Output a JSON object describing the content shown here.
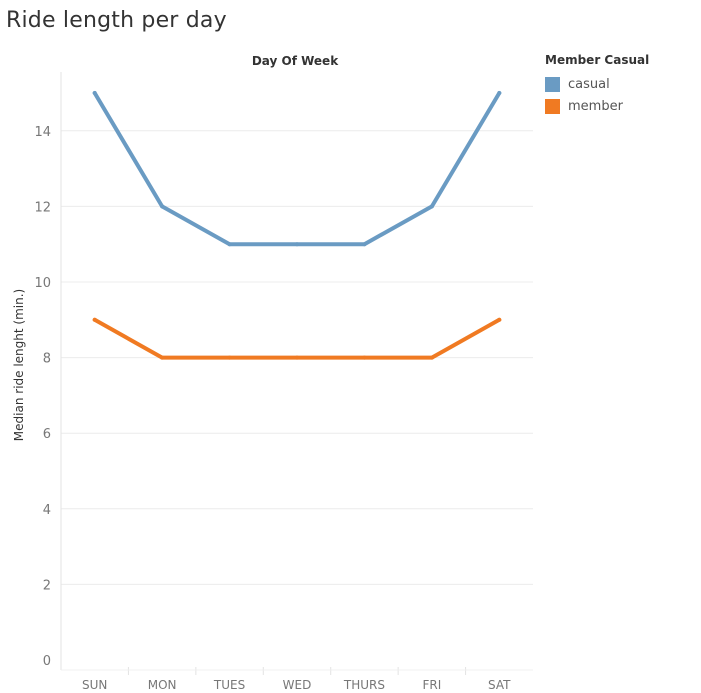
{
  "page": {
    "title": "Ride length per day"
  },
  "chart_data": {
    "type": "line",
    "title": "Ride length per day",
    "column_header": "Day Of Week",
    "xlabel": "",
    "ylabel": "Median ride lenght (min.)",
    "categories": [
      "SUN",
      "MON",
      "TUES",
      "WED",
      "THURS",
      "FRI",
      "SAT"
    ],
    "ylim": [
      0,
      16
    ],
    "yticks": [
      0,
      2,
      4,
      6,
      8,
      10,
      12,
      14
    ],
    "grid": true,
    "legend": {
      "title": "Member Casual",
      "position": "right"
    },
    "series": [
      {
        "name": "casual",
        "color": "#6a9bc3",
        "values": [
          15,
          12,
          11,
          11,
          11,
          12,
          15
        ]
      },
      {
        "name": "member",
        "color": "#f07a22",
        "values": [
          9,
          8,
          8,
          8,
          8,
          8,
          9
        ]
      }
    ]
  }
}
